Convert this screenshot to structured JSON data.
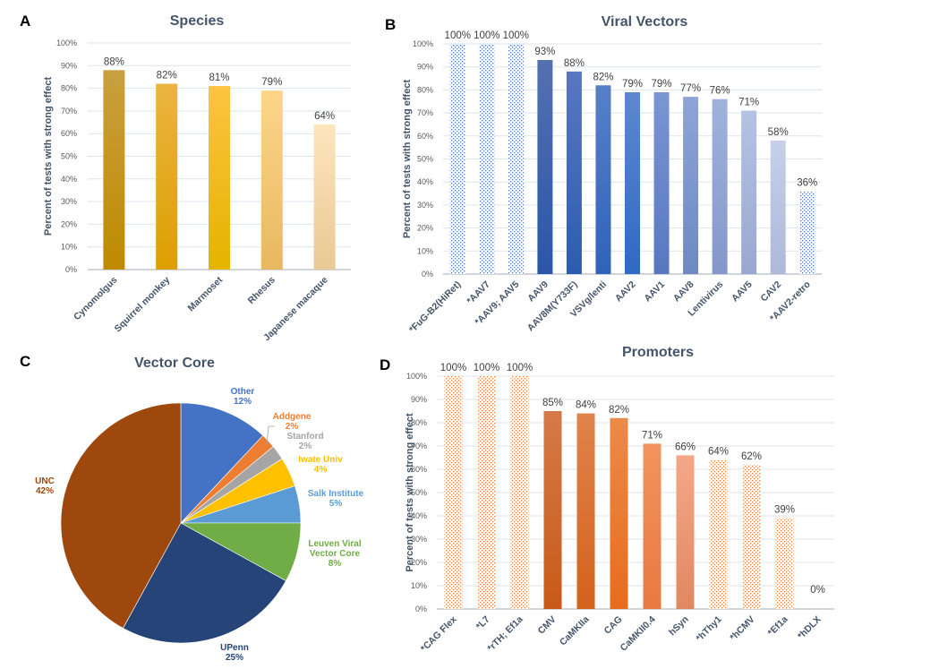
{
  "panels": {
    "A": {
      "letter": "A"
    },
    "B": {
      "letter": "B"
    },
    "C": {
      "letter": "C"
    },
    "D": {
      "letter": "D"
    }
  },
  "chart_data": [
    {
      "id": "A",
      "type": "bar",
      "title": "Species",
      "ylabel": "Percent of tests with strong effect",
      "xlabel": "",
      "ylim": [
        0,
        100
      ],
      "yticks": [
        "0%",
        "10%",
        "20%",
        "30%",
        "40%",
        "50%",
        "60%",
        "70%",
        "80%",
        "90%",
        "100%"
      ],
      "grid": true,
      "categories": [
        "Cynomolgus",
        "Squirrel monkey",
        "Marmoset",
        "Rhesus",
        "Japanese macaque"
      ],
      "values": [
        88,
        82,
        81,
        79,
        64
      ],
      "data_labels": [
        "88%",
        "82%",
        "81%",
        "79%",
        "64%"
      ],
      "patterned": [
        false,
        false,
        false,
        false,
        false
      ],
      "colors": [
        [
          "#c9a040",
          "#bf8a00"
        ],
        [
          "#ebb440",
          "#dca000"
        ],
        [
          "#fcc440",
          "#e3b400"
        ],
        [
          "#fdd68a",
          "#e8b860"
        ],
        [
          "#fde5bc",
          "#e9c995"
        ]
      ]
    },
    {
      "id": "B",
      "type": "bar",
      "title": "Viral Vectors",
      "ylabel": "Percent of tests with strong effect",
      "xlabel": "",
      "ylim": [
        0,
        100
      ],
      "yticks": [
        "0%",
        "10%",
        "20%",
        "30%",
        "40%",
        "50%",
        "60%",
        "70%",
        "80%",
        "90%",
        "100%"
      ],
      "grid": true,
      "categories": [
        "*FuG-B2(HiRet)",
        "*AAV7",
        "*AAV9; AAV5",
        "AAV9",
        "AAV8M(Y733F)",
        "VSVg/lenti",
        "AAV2",
        "AAV1",
        "AAV8",
        "Lentivirus",
        "AAV5",
        "CAV2",
        "*AAV2-retro"
      ],
      "values": [
        100,
        100,
        100,
        93,
        88,
        82,
        79,
        79,
        77,
        76,
        71,
        58,
        36
      ],
      "data_labels": [
        "100%",
        "100%",
        "100%",
        "93%",
        "88%",
        "82%",
        "79%",
        "79%",
        "77%",
        "76%",
        "71%",
        "58%",
        "36%"
      ],
      "patterned": [
        true,
        true,
        true,
        false,
        false,
        false,
        false,
        false,
        false,
        false,
        false,
        false,
        true
      ],
      "pattern_color": "#4472c4",
      "colors": [
        [],
        [],
        [],
        [
          "#5470b0",
          "#2b56a8"
        ],
        [
          "#5878c0",
          "#2c5cb0"
        ],
        [
          "#5880c8",
          "#2f62ba"
        ],
        [
          "#5e88d0",
          "#3068c4"
        ],
        [
          "#7b96d4",
          "#5a76c0"
        ],
        [
          "#8ea4d8",
          "#6f88c4"
        ],
        [
          "#a0b2dc",
          "#8497c8"
        ],
        [
          "#b4c2e4",
          "#9aa8d0"
        ],
        [
          "#c6d0ea",
          "#aeb8d8"
        ],
        []
      ]
    },
    {
      "id": "C",
      "type": "pie",
      "title": "Vector Core",
      "start": "top",
      "direction": "clockwise",
      "slices": [
        {
          "label": "Other",
          "value": 12,
          "pct": "12%",
          "color": "#4472c4",
          "label_color": "#4472c4"
        },
        {
          "label": "Addgene",
          "value": 2,
          "pct": "2%",
          "color": "#ed7d31",
          "label_color": "#ed7d31"
        },
        {
          "label": "Stanford",
          "value": 2,
          "pct": "2%",
          "color": "#a5a5a5",
          "label_color": "#a5a5a5"
        },
        {
          "label": "Iwate Univ",
          "value": 4,
          "pct": "4%",
          "color": "#ffc000",
          "label_color": "#ffc000"
        },
        {
          "label": "Salk Institute",
          "value": 5,
          "pct": "5%",
          "color": "#5b9bd5",
          "label_color": "#5b9bd5"
        },
        {
          "label": "Leuven Viral Vector Core",
          "label_lines": [
            "Leuven Viral",
            "Vector Core"
          ],
          "value": 8,
          "pct": "8%",
          "color": "#70ad47",
          "label_color": "#70ad47"
        },
        {
          "label": "UPenn",
          "value": 25,
          "pct": "25%",
          "color": "#264478",
          "label_color": "#264478"
        },
        {
          "label": "UNC",
          "value": 42,
          "pct": "42%",
          "color": "#9e480e",
          "label_color": "#9e480e"
        }
      ]
    },
    {
      "id": "D",
      "type": "bar",
      "title": "Promoters",
      "ylabel": "Percent of tests with strong effect",
      "xlabel": "",
      "ylim": [
        0,
        100
      ],
      "yticks": [
        "0%",
        "10%",
        "20%",
        "30%",
        "40%",
        "50%",
        "60%",
        "70%",
        "80%",
        "90%",
        "100%"
      ],
      "grid": true,
      "categories": [
        "*CAG Flex",
        "*L7",
        "*rTH; Ef1a",
        "CMV",
        "CaMKIIa",
        "CAG",
        "CaMKII0.4",
        "hSyn",
        "*hThy1",
        "*hCMV",
        "*Ef1a",
        "*hDLX"
      ],
      "values": [
        100,
        100,
        100,
        85,
        84,
        82,
        71,
        66,
        64,
        62,
        39,
        0
      ],
      "data_labels": [
        "100%",
        "100%",
        "100%",
        "85%",
        "84%",
        "82%",
        "71%",
        "66%",
        "64%",
        "62%",
        "39%",
        "0%"
      ],
      "patterned": [
        true,
        true,
        true,
        false,
        false,
        false,
        false,
        false,
        true,
        true,
        true,
        true
      ],
      "pattern_color": "#ed7d31",
      "colors": [
        [],
        [],
        [],
        [
          "#d57a48",
          "#c85a18"
        ],
        [
          "#e0834c",
          "#d4621c"
        ],
        [
          "#ec8a48",
          "#e86c1c"
        ],
        [
          "#f2935e",
          "#e87a40"
        ],
        [
          "#f4a888",
          "#e08860"
        ],
        [],
        [],
        [],
        []
      ]
    }
  ]
}
